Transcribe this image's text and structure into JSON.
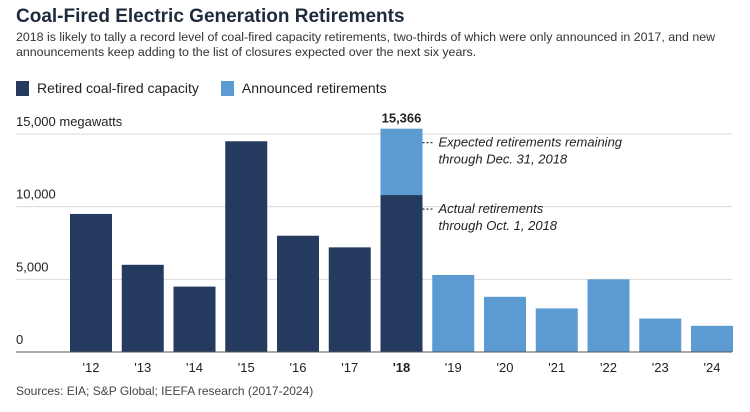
{
  "header": {
    "title": "Coal-Fired Electric Generation Retirements",
    "subtitle": "2018 is likely to tally a record level of coal-fired capacity retirements, two-thirds of which were only announced in 2017, and new announcements keep adding to the list of closures expected over the next six years."
  },
  "legend": {
    "retired_label": "Retired coal-fired capacity",
    "announced_label": "Announced retirements"
  },
  "source": "Sources: EIA; S&P Global; IEEFA research (2017-2024)",
  "colors": {
    "retired": "#243a5e",
    "announced": "#5b9bd1",
    "gridline": "#d9d9d9",
    "axis": "#555555"
  },
  "chart_data": {
    "type": "bar",
    "categories": [
      "'12",
      "'13",
      "'14",
      "'15",
      "'16",
      "'17",
      "'18",
      "'19",
      "'20",
      "'21",
      "'22",
      "'23",
      "'24"
    ],
    "series": [
      {
        "name": "Retired coal-fired capacity",
        "values": [
          9500,
          6000,
          4500,
          14500,
          8000,
          7200,
          10800,
          0,
          0,
          0,
          0,
          0,
          0
        ]
      },
      {
        "name": "Announced retirements",
        "values": [
          0,
          0,
          0,
          0,
          0,
          0,
          4566,
          5300,
          3800,
          3000,
          5000,
          2300,
          1800
        ]
      }
    ],
    "stacked": true,
    "ylim": [
      0,
      15000
    ],
    "yticks": [
      0,
      5000,
      10000,
      15000
    ],
    "ytick_labels": [
      "0",
      "5,000",
      "10,000",
      "15,000 megawatts"
    ],
    "grid": true,
    "legend_position": "top-left",
    "bar_label": {
      "category": "'18",
      "text": "15,366"
    },
    "annotations": [
      {
        "category": "'18",
        "series": "Announced retirements",
        "text": [
          "Expected retirements remaining",
          "through Dec. 31, 2018"
        ]
      },
      {
        "category": "'18",
        "series": "Retired coal-fired capacity",
        "text": [
          "Actual retirements",
          "through Oct. 1, 2018"
        ]
      }
    ]
  }
}
